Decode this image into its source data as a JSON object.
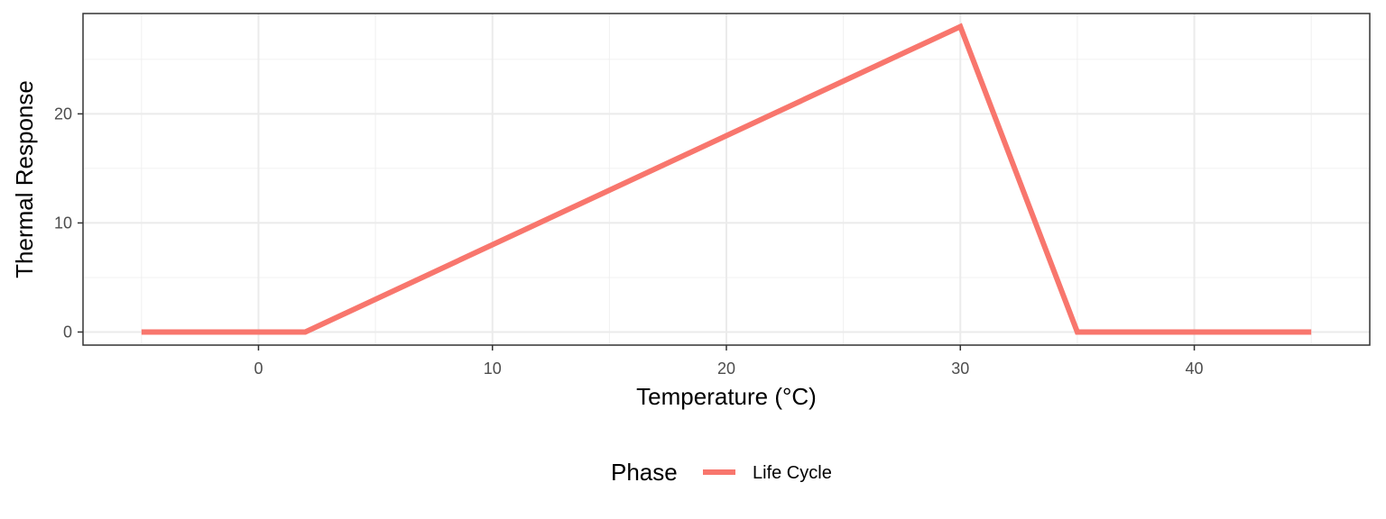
{
  "chart_data": {
    "type": "line",
    "title": "",
    "xlabel": "Temperature (°C)",
    "ylabel": "Thermal Response",
    "xlim": [
      -7.5,
      47.5
    ],
    "ylim": [
      -1.2,
      29.2
    ],
    "x_ticks": [
      0,
      10,
      20,
      30,
      40
    ],
    "x_minor_ticks": [
      -5,
      5,
      15,
      25,
      35,
      45
    ],
    "y_ticks": [
      0,
      10,
      20
    ],
    "y_minor_ticks": [
      5,
      15,
      25
    ],
    "x_tick_labels": [
      "0",
      "10",
      "20",
      "30",
      "40"
    ],
    "y_tick_labels": [
      "0",
      "10",
      "20"
    ],
    "grid": true,
    "legend_position": "bottom",
    "legend": {
      "title": "Phase",
      "entries": [
        "Life Cycle"
      ]
    },
    "series": [
      {
        "name": "Life Cycle",
        "color": "#F8766D",
        "x": [
          -5,
          2,
          30,
          35,
          45
        ],
        "y": [
          0,
          0,
          28,
          0,
          0
        ]
      }
    ]
  }
}
